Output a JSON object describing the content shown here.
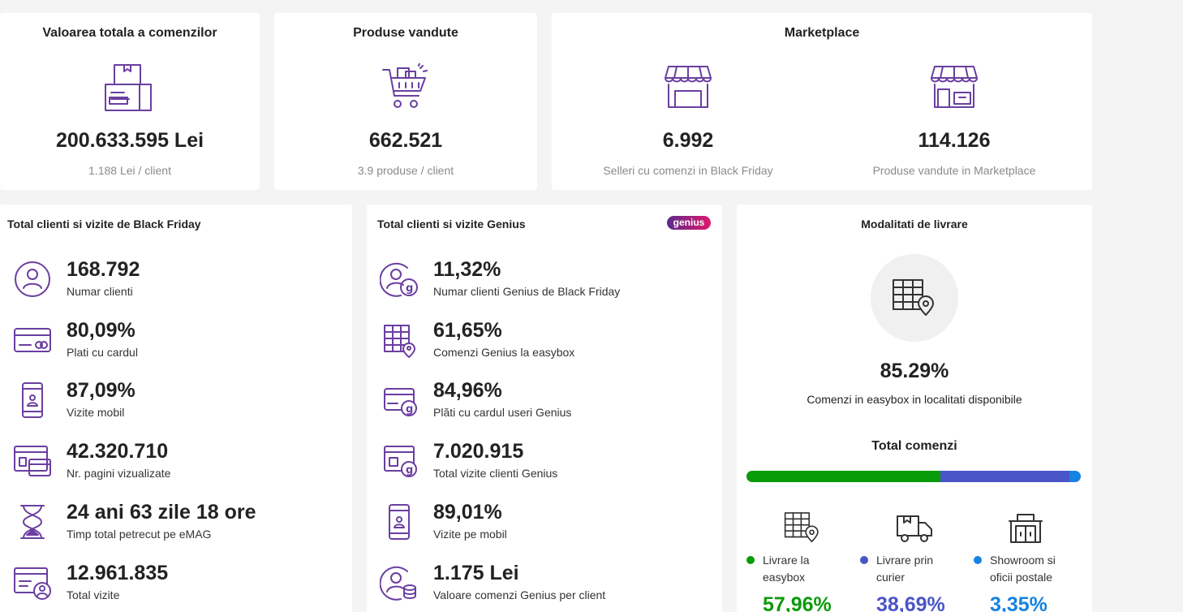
{
  "top": {
    "total_orders": {
      "title": "Valoarea totala a comenzilor",
      "value": "200.633.595 Lei",
      "sub": "1.188 Lei / client"
    },
    "products_sold": {
      "title": "Produse vandute",
      "value": "662.521",
      "sub": "3.9 produse / client"
    },
    "marketplace": {
      "title": "Marketplace",
      "sellers": {
        "value": "6.992",
        "sub": "Selleri cu comenzi in Black Friday"
      },
      "products": {
        "value": "114.126",
        "sub": "Produse vandute in Marketplace"
      }
    }
  },
  "bf": {
    "title": "Total clienti si vizite de Black Friday",
    "items": [
      {
        "value": "168.792",
        "label": "Numar clienti",
        "icon": "user-circle-icon"
      },
      {
        "value": "80,09%",
        "label": "Plati cu cardul",
        "icon": "card-icon"
      },
      {
        "value": "87,09%",
        "label": "Vizite mobil",
        "icon": "mobile-icon"
      },
      {
        "value": "42.320.710",
        "label": "Nr. pagini vizualizate",
        "icon": "pages-icon"
      },
      {
        "value": "24 ani 63 zile 18 ore",
        "label": "Timp total petrecut pe eMAG",
        "icon": "hourglass-icon"
      },
      {
        "value": "12.961.835",
        "label": "Total vizite",
        "icon": "visits-icon"
      }
    ]
  },
  "genius": {
    "title": "Total clienti si vizite Genius",
    "badge": "genius",
    "items": [
      {
        "value": "11,32%",
        "label": "Numar clienti Genius de Black Friday",
        "icon": "genius-user-icon"
      },
      {
        "value": "61,65%",
        "label": "Comenzi Genius la easybox",
        "icon": "easybox-icon"
      },
      {
        "value": "84,96%",
        "label": "Plăti cu cardul useri Genius",
        "icon": "genius-card-icon"
      },
      {
        "value": "7.020.915",
        "label": "Total vizite clienti Genius",
        "icon": "genius-visits-icon"
      },
      {
        "value": "89,01%",
        "label": "Vizite pe mobil",
        "icon": "mobile-icon"
      },
      {
        "value": "1.175 Lei",
        "label": "Valoare comenzi Genius per client",
        "icon": "genius-coins-icon"
      }
    ]
  },
  "delivery": {
    "title": "Modalitati de livrare",
    "pct": "85.29%",
    "pct_label": "Comenzi in easybox in localitati disponibile",
    "total_title": "Total comenzi",
    "bar": [
      {
        "fraction": 0.5796,
        "color": "#0a9b0a"
      },
      {
        "fraction": 0.3869,
        "color": "#4a55c8"
      },
      {
        "fraction": 0.0335,
        "color": "#1683e0"
      }
    ],
    "methods": [
      {
        "label": "Livrare la easybox",
        "value": "57,96%",
        "color": "#0a9b0a",
        "icon": "easybox-icon"
      },
      {
        "label": "Livrare prin curier",
        "value": "38,69%",
        "color": "#4a55c8",
        "icon": "truck-icon"
      },
      {
        "label": "Showroom si oficii postale",
        "value": "3,35%",
        "color": "#1683e0",
        "icon": "showroom-icon"
      }
    ]
  }
}
